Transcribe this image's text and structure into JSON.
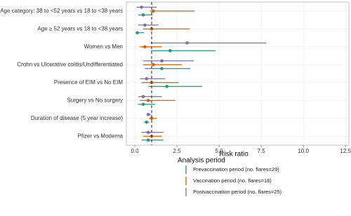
{
  "chart_data": {
    "type": "forest",
    "x_label": "Risk ratio",
    "categories": [
      "Age category: 38 to <52 years vs 18 to <38 years",
      "Age ≥ 52 years vs 18 to <38 years",
      "Women vs Men",
      "Crohn vs Ulcerative colitis/Undifferentiated",
      "Presence of EIM vs No EIM",
      "Surgery vs No surgery",
      "Duration of disease (5 year increase)",
      "Pfizer vs Moderna"
    ],
    "xlim": [
      -0.5,
      12.7
    ],
    "xticks": [
      {
        "value": 0,
        "label": "0.0"
      },
      2.5,
      {
        "value": 5,
        "label": "5.0"
      },
      7.5,
      {
        "value": 10,
        "label": "10.0"
      },
      12.5
    ],
    "reference_line": 1,
    "grid": true,
    "legend_title": "Analysis period",
    "series": [
      {
        "name": "Prevaccination period (no. flares=29)",
        "color": "#1b9e77",
        "values": [
          0.5,
          0.15,
          2.1,
          1.6,
          1.9,
          0.5,
          0.7,
          0.8
        ],
        "lower": [
          0.2,
          0.05,
          0.95,
          0.6,
          0.8,
          0.2,
          0.55,
          0.4
        ],
        "upper": [
          1.05,
          0.55,
          4.8,
          3.3,
          4.0,
          1.2,
          0.85,
          1.7
        ]
      },
      {
        "name": "Vaccination period (no. flares=18)",
        "color": "#d95f02",
        "values": [
          1.1,
          1.0,
          0.6,
          1.1,
          1.0,
          0.8,
          1.0,
          1.0
        ],
        "lower": [
          0.9,
          0.5,
          0.3,
          0.5,
          0.4,
          0.3,
          0.85,
          0.5
        ],
        "upper": [
          3.55,
          3.25,
          1.6,
          2.8,
          2.6,
          2.4,
          1.3,
          1.6
        ]
      },
      {
        "name": "Postvaccination period (no. flares=25)",
        "color": "#7570b3",
        "values": [
          0.4,
          0.6,
          3.1,
          1.6,
          0.7,
          0.5,
          0.8,
          0.8
        ],
        "lower": [
          0.1,
          0.2,
          0.95,
          0.5,
          0.3,
          0.2,
          0.7,
          0.4
        ],
        "upper": [
          1.3,
          1.4,
          7.8,
          3.5,
          1.8,
          1.6,
          0.95,
          1.7
        ]
      }
    ]
  }
}
